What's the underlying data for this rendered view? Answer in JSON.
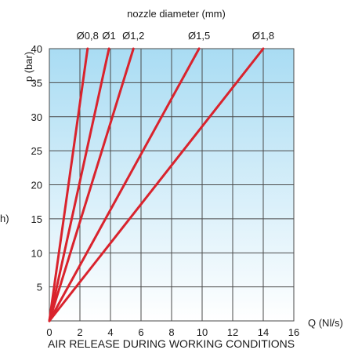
{
  "chart_data": {
    "type": "line",
    "title": "AIR RELEASE DURING WORKING CONDITIONS",
    "top_axis_title": "nozzle diameter (mm)",
    "xlabel": "Q (Nl/s)",
    "ylabel": "p (bar)",
    "left_fragment": "h)",
    "xlim": [
      0,
      16
    ],
    "ylim": [
      0,
      40
    ],
    "x_ticks": [
      "0",
      "2",
      "4",
      "6",
      "8",
      "10",
      "12",
      "14",
      "16"
    ],
    "y_ticks": [
      "5",
      "10",
      "15",
      "20",
      "25",
      "30",
      "35",
      "40"
    ],
    "grid": true,
    "series": [
      {
        "name": "Ø0,8",
        "x": [
          0,
          2.5
        ],
        "y": [
          0,
          40
        ]
      },
      {
        "name": "Ø1",
        "x": [
          0,
          3.9
        ],
        "y": [
          0,
          40
        ]
      },
      {
        "name": "Ø1,2",
        "x": [
          0,
          5.5
        ],
        "y": [
          0,
          40
        ]
      },
      {
        "name": "Ø1,5",
        "x": [
          0,
          9.8
        ],
        "y": [
          0,
          40
        ]
      },
      {
        "name": "Ø1,8",
        "x": [
          0,
          14
        ],
        "y": [
          0,
          40
        ]
      }
    ],
    "colors": {
      "line": "#d9232d",
      "grid": "#4a4a4a",
      "fill_top": "#a9dcf3",
      "fill_bottom": "#ffffff"
    }
  }
}
